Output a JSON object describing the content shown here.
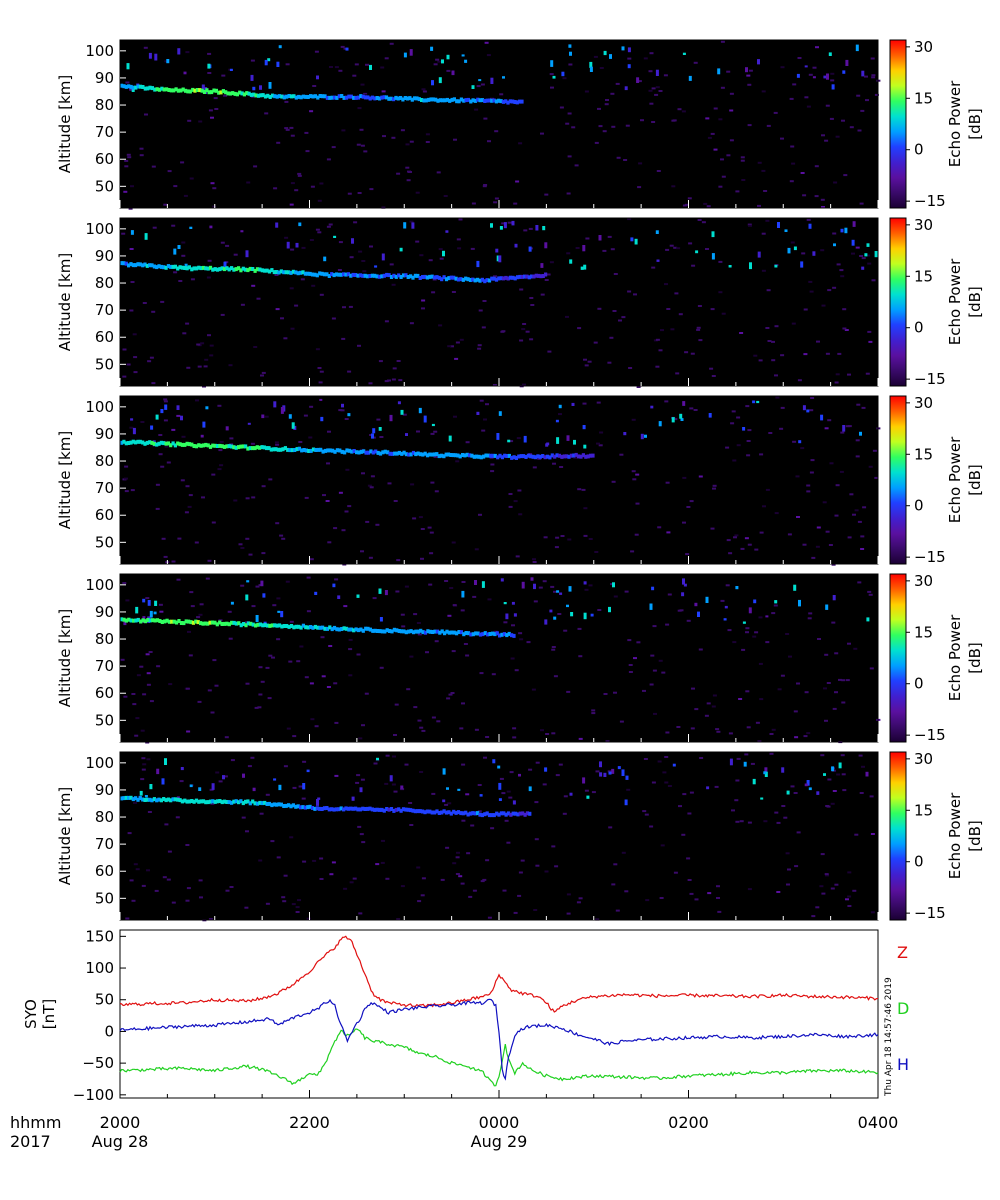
{
  "colors": {
    "background": "#000000",
    "Z": "#e01010",
    "D": "#20d020",
    "H": "#1010c0",
    "colorbar": [
      "#1a0033",
      "#3a0a6a",
      "#5a10a0",
      "#4020d0",
      "#2040ff",
      "#00a0ff",
      "#00e0d0",
      "#30ff60",
      "#c0ff20",
      "#ffd000",
      "#ff6000",
      "#ff0000"
    ]
  },
  "stamp": "Thu Apr 18 14:57:46 2019",
  "time_axis": {
    "corner_top": "hhmm",
    "corner_bottom": "2017",
    "ticks": [
      {
        "label": "2000",
        "sub": "Aug 28",
        "t": 0
      },
      {
        "label": "2200",
        "sub": "",
        "t": 120
      },
      {
        "label": "0000",
        "sub": "Aug 29",
        "t": 240
      },
      {
        "label": "0200",
        "sub": "",
        "t": 360
      },
      {
        "label": "0400",
        "sub": "",
        "t": 480
      }
    ]
  },
  "chart_data": [
    {
      "type": "heatmap",
      "panel": 1,
      "ylabel": "Altitude [km]",
      "ylim": [
        42,
        104
      ],
      "yticks": [
        50,
        60,
        70,
        80,
        90,
        100
      ],
      "xlim_minutes": [
        0,
        480
      ],
      "colorbar": {
        "label": "Echo Power [dB]",
        "range": [
          -17,
          32
        ],
        "ticks": [
          30,
          15,
          0,
          -15
        ]
      },
      "echo_layer": [
        {
          "t": 0,
          "alt": 87,
          "db": 5
        },
        {
          "t": 30,
          "alt": 85.5,
          "db": 14
        },
        {
          "t": 60,
          "alt": 85,
          "db": 16
        },
        {
          "t": 100,
          "alt": 83,
          "db": 8
        },
        {
          "t": 150,
          "alt": 83,
          "db": 2
        },
        {
          "t": 190,
          "alt": 82,
          "db": 6
        },
        {
          "t": 230,
          "alt": 81.5,
          "db": 4
        },
        {
          "t": 255,
          "alt": 81,
          "db": 0
        }
      ]
    },
    {
      "type": "heatmap",
      "panel": 2,
      "ylabel": "Altitude [km]",
      "ylim": [
        42,
        104
      ],
      "yticks": [
        50,
        60,
        70,
        80,
        90,
        100
      ],
      "xlim_minutes": [
        0,
        480
      ],
      "colorbar": {
        "label": "Echo Power [dB]",
        "range": [
          -17,
          32
        ],
        "ticks": [
          30,
          15,
          0,
          -15
        ]
      },
      "echo_layer": [
        {
          "t": 0,
          "alt": 87,
          "db": 4
        },
        {
          "t": 40,
          "alt": 85.5,
          "db": 10
        },
        {
          "t": 80,
          "alt": 85,
          "db": 12
        },
        {
          "t": 130,
          "alt": 83,
          "db": 4
        },
        {
          "t": 180,
          "alt": 82.5,
          "db": 3
        },
        {
          "t": 230,
          "alt": 81,
          "db": 2
        },
        {
          "t": 270,
          "alt": 83,
          "db": -4
        }
      ]
    },
    {
      "type": "heatmap",
      "panel": 3,
      "ylabel": "Altitude [km]",
      "ylim": [
        42,
        104
      ],
      "yticks": [
        50,
        60,
        70,
        80,
        90,
        100
      ],
      "xlim_minutes": [
        0,
        480
      ],
      "colorbar": {
        "label": "Echo Power [dB]",
        "range": [
          -17,
          32
        ],
        "ticks": [
          30,
          15,
          0,
          -15
        ]
      },
      "echo_layer": [
        {
          "t": 0,
          "alt": 87,
          "db": 8
        },
        {
          "t": 40,
          "alt": 86,
          "db": 14
        },
        {
          "t": 80,
          "alt": 85,
          "db": 12
        },
        {
          "t": 120,
          "alt": 84,
          "db": 6
        },
        {
          "t": 170,
          "alt": 83,
          "db": 4
        },
        {
          "t": 210,
          "alt": 82,
          "db": 5
        },
        {
          "t": 250,
          "alt": 81.5,
          "db": 2
        },
        {
          "t": 300,
          "alt": 82,
          "db": -4
        }
      ]
    },
    {
      "type": "heatmap",
      "panel": 4,
      "ylabel": "Altitude [km]",
      "ylim": [
        42,
        104
      ],
      "yticks": [
        50,
        60,
        70,
        80,
        90,
        100
      ],
      "xlim_minutes": [
        0,
        480
      ],
      "colorbar": {
        "label": "Echo Power [dB]",
        "range": [
          -17,
          32
        ],
        "ticks": [
          30,
          15,
          0,
          -15
        ]
      },
      "echo_layer": [
        {
          "t": 0,
          "alt": 87,
          "db": 12
        },
        {
          "t": 50,
          "alt": 86,
          "db": 16
        },
        {
          "t": 100,
          "alt": 85,
          "db": 10
        },
        {
          "t": 150,
          "alt": 83.5,
          "db": 6
        },
        {
          "t": 200,
          "alt": 82.5,
          "db": 4
        },
        {
          "t": 250,
          "alt": 81.5,
          "db": 3
        }
      ]
    },
    {
      "type": "heatmap",
      "panel": 5,
      "ylabel": "Altitude [km]",
      "ylim": [
        42,
        104
      ],
      "yticks": [
        50,
        60,
        70,
        80,
        90,
        100
      ],
      "xlim_minutes": [
        0,
        480
      ],
      "colorbar": {
        "label": "Echo Power [dB]",
        "range": [
          -17,
          32
        ],
        "ticks": [
          30,
          15,
          0,
          -15
        ]
      },
      "echo_layer": [
        {
          "t": 0,
          "alt": 87,
          "db": 6
        },
        {
          "t": 40,
          "alt": 86,
          "db": 10
        },
        {
          "t": 80,
          "alt": 85.5,
          "db": 8
        },
        {
          "t": 130,
          "alt": 83,
          "db": 2
        },
        {
          "t": 180,
          "alt": 82.5,
          "db": 0
        },
        {
          "t": 230,
          "alt": 81,
          "db": 2
        },
        {
          "t": 260,
          "alt": 81,
          "db": -2
        }
      ]
    },
    {
      "type": "line",
      "panel": 6,
      "ylabel": "SYO [nT]",
      "ylim": [
        -105,
        160
      ],
      "yticks": [
        150,
        100,
        50,
        0,
        -50,
        -100
      ],
      "xlim_minutes": [
        0,
        480
      ],
      "series": [
        {
          "name": "Z",
          "points": [
            [
              0,
              42
            ],
            [
              20,
              44
            ],
            [
              40,
              45
            ],
            [
              60,
              50
            ],
            [
              80,
              48
            ],
            [
              90,
              52
            ],
            [
              100,
              60
            ],
            [
              110,
              75
            ],
            [
              115,
              85
            ],
            [
              120,
              95
            ],
            [
              125,
              108
            ],
            [
              130,
              120
            ],
            [
              135,
              130
            ],
            [
              140,
              145
            ],
            [
              143,
              150
            ],
            [
              147,
              140
            ],
            [
              152,
              110
            ],
            [
              156,
              85
            ],
            [
              160,
              60
            ],
            [
              165,
              50
            ],
            [
              170,
              45
            ],
            [
              180,
              42
            ],
            [
              190,
              40
            ],
            [
              200,
              42
            ],
            [
              210,
              45
            ],
            [
              220,
              50
            ],
            [
              230,
              55
            ],
            [
              235,
              60
            ],
            [
              240,
              90
            ],
            [
              243,
              80
            ],
            [
              248,
              65
            ],
            [
              255,
              60
            ],
            [
              265,
              55
            ],
            [
              270,
              45
            ],
            [
              275,
              30
            ],
            [
              280,
              40
            ],
            [
              290,
              50
            ],
            [
              300,
              55
            ],
            [
              320,
              58
            ],
            [
              340,
              56
            ],
            [
              360,
              57
            ],
            [
              380,
              56
            ],
            [
              400,
              55
            ],
            [
              420,
              57
            ],
            [
              440,
              55
            ],
            [
              460,
              54
            ],
            [
              480,
              52
            ]
          ]
        },
        {
          "name": "D",
          "points": [
            [
              0,
              -62
            ],
            [
              20,
              -60
            ],
            [
              40,
              -58
            ],
            [
              60,
              -62
            ],
            [
              70,
              -58
            ],
            [
              80,
              -55
            ],
            [
              90,
              -60
            ],
            [
              100,
              -70
            ],
            [
              110,
              -82
            ],
            [
              115,
              -75
            ],
            [
              120,
              -65
            ],
            [
              125,
              -70
            ],
            [
              130,
              -50
            ],
            [
              135,
              -20
            ],
            [
              140,
              0
            ],
            [
              145,
              -8
            ],
            [
              150,
              5
            ],
            [
              155,
              -10
            ],
            [
              160,
              -15
            ],
            [
              170,
              -20
            ],
            [
              180,
              -25
            ],
            [
              190,
              -35
            ],
            [
              200,
              -40
            ],
            [
              210,
              -50
            ],
            [
              220,
              -55
            ],
            [
              230,
              -65
            ],
            [
              235,
              -80
            ],
            [
              238,
              -85
            ],
            [
              240,
              -70
            ],
            [
              242,
              -45
            ],
            [
              244,
              -20
            ],
            [
              246,
              -45
            ],
            [
              250,
              -65
            ],
            [
              255,
              -50
            ],
            [
              260,
              -60
            ],
            [
              270,
              -70
            ],
            [
              280,
              -75
            ],
            [
              290,
              -72
            ],
            [
              300,
              -70
            ],
            [
              320,
              -72
            ],
            [
              340,
              -74
            ],
            [
              360,
              -70
            ],
            [
              380,
              -68
            ],
            [
              400,
              -65
            ],
            [
              420,
              -65
            ],
            [
              440,
              -62
            ],
            [
              460,
              -62
            ],
            [
              480,
              -65
            ]
          ]
        },
        {
          "name": "H",
          "points": [
            [
              0,
              2
            ],
            [
              20,
              5
            ],
            [
              40,
              8
            ],
            [
              60,
              10
            ],
            [
              80,
              15
            ],
            [
              95,
              20
            ],
            [
              100,
              10
            ],
            [
              110,
              22
            ],
            [
              120,
              30
            ],
            [
              125,
              35
            ],
            [
              130,
              45
            ],
            [
              133,
              50
            ],
            [
              136,
              40
            ],
            [
              140,
              10
            ],
            [
              144,
              -15
            ],
            [
              148,
              5
            ],
            [
              152,
              20
            ],
            [
              156,
              40
            ],
            [
              160,
              45
            ],
            [
              170,
              30
            ],
            [
              180,
              35
            ],
            [
              190,
              38
            ],
            [
              200,
              40
            ],
            [
              210,
              42
            ],
            [
              220,
              45
            ],
            [
              230,
              45
            ],
            [
              235,
              50
            ],
            [
              238,
              40
            ],
            [
              240,
              0
            ],
            [
              242,
              -60
            ],
            [
              244,
              -75
            ],
            [
              246,
              -40
            ],
            [
              250,
              -5
            ],
            [
              255,
              5
            ],
            [
              260,
              8
            ],
            [
              270,
              10
            ],
            [
              280,
              5
            ],
            [
              290,
              -5
            ],
            [
              300,
              -12
            ],
            [
              310,
              -20
            ],
            [
              320,
              -15
            ],
            [
              340,
              -12
            ],
            [
              360,
              -10
            ],
            [
              380,
              -8
            ],
            [
              400,
              -10
            ],
            [
              420,
              -8
            ],
            [
              440,
              -5
            ],
            [
              460,
              -8
            ],
            [
              480,
              -5
            ]
          ]
        }
      ]
    }
  ]
}
